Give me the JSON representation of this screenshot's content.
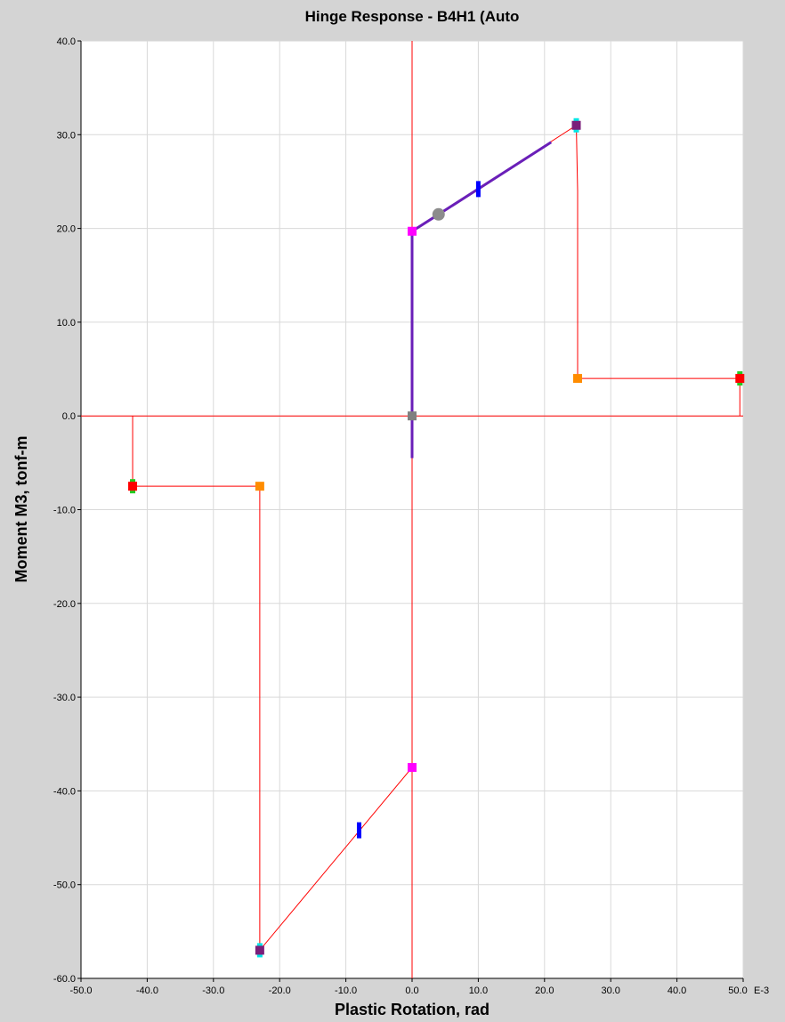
{
  "chart_data": {
    "type": "line",
    "title": "Hinge Response - B4H1 (Auto",
    "xlabel": "Plastic Rotation, rad",
    "ylabel": "Moment M3, tonf-m",
    "x_scale_label": "E-3",
    "xlim": [
      -50,
      50
    ],
    "ylim": [
      -60,
      40
    ],
    "grid": true,
    "x_ticks": [
      "-50.0",
      "-40.0",
      "-30.0",
      "-20.0",
      "-10.0",
      "0.0",
      "10.0",
      "20.0",
      "30.0",
      "40.0",
      "50.0"
    ],
    "y_ticks": [
      "40.0",
      "30.0",
      "20.0",
      "10.0",
      "0.0",
      "-10.0",
      "-20.0",
      "-30.0",
      "-40.0",
      "-50.0",
      "-60.0"
    ],
    "colors": {
      "backbone": "#ff0000",
      "response": "#6a1fb8",
      "point_B": "#ff00ff",
      "point_C": "#7a1f7a",
      "point_D": "#ff8c00",
      "point_E": "#ff0000",
      "io_marker": "#0000ff",
      "origin": "#808080",
      "current": "#8c8c8c"
    },
    "backbone_curve": {
      "x": [
        49.5,
        49.5,
        25,
        25,
        24.8,
        0,
        0,
        0,
        -23,
        -23,
        -23,
        -42.2,
        -42.2
      ],
      "y": [
        0,
        4,
        4,
        24,
        31,
        19.7,
        -37.5,
        -37.5,
        -57,
        -45,
        -7.5,
        -7.5,
        0
      ]
    },
    "response_curve": {
      "x": [
        0,
        0,
        0,
        4,
        21
      ],
      "y": [
        -4.5,
        19.7,
        19.7,
        21.5,
        29.2
      ]
    },
    "points": {
      "B_pos": [
        0,
        19.7
      ],
      "B_neg": [
        0,
        -37.5
      ],
      "C_pos": [
        24.8,
        31
      ],
      "C_neg": [
        -23,
        -57
      ],
      "D_pos": [
        25,
        4
      ],
      "D_neg": [
        -23,
        -7.5
      ],
      "E_pos": [
        49.5,
        4
      ],
      "E_neg": [
        -42.2,
        -7.5
      ],
      "IO_pos": [
        10,
        24.2
      ],
      "IO_neg": [
        -8,
        -44.2
      ],
      "origin": [
        0,
        0
      ],
      "current": [
        4,
        21.5
      ]
    }
  }
}
